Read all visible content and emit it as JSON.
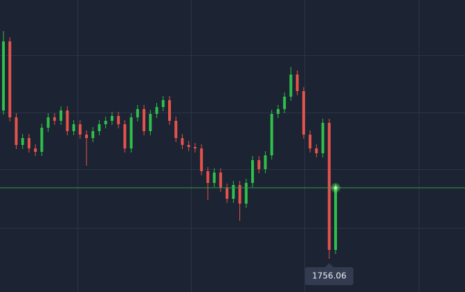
{
  "chart_data": {
    "type": "candlestick",
    "ylim": [
      1755.1,
      1763.56
    ],
    "up_color": "#2fbf4a",
    "down_color": "#e5534b",
    "open": [
      1760.36,
      1762.36,
      1760.16,
      1759.36,
      1759.56,
      1759.26,
      1759.16,
      1759.86,
      1760.16,
      1760.06,
      1760.36,
      1759.76,
      1759.96,
      1759.66,
      1759.56,
      1759.76,
      1759.96,
      1760.06,
      1760.2,
      1759.96,
      1759.26,
      1760.16,
      1760.4,
      1759.76,
      1760.26,
      1760.46,
      1760.66,
      1760.06,
      1759.56,
      1759.36,
      1759.3,
      1759.26,
      1758.6,
      1758.26,
      1758.56,
      1758.12,
      1757.8,
      1758.2,
      1757.66,
      1758.26,
      1758.92,
      1758.66,
      1759.06,
      1760.26,
      1760.4,
      1760.76,
      1761.4,
      1760.92,
      1759.66,
      1759.26,
      1759.12,
      1760.0,
      1756.32
    ],
    "high": [
      1762.66,
      1762.48,
      1760.28,
      1759.68,
      1759.68,
      1759.38,
      1759.98,
      1760.28,
      1760.28,
      1760.48,
      1760.48,
      1760.08,
      1760.08,
      1759.78,
      1759.88,
      1760.08,
      1760.18,
      1760.32,
      1760.32,
      1760.08,
      1760.28,
      1760.52,
      1760.52,
      1760.38,
      1760.58,
      1760.78,
      1760.78,
      1760.18,
      1759.68,
      1759.48,
      1759.42,
      1759.38,
      1758.72,
      1758.68,
      1758.68,
      1758.24,
      1758.32,
      1758.32,
      1758.38,
      1759.04,
      1759.04,
      1759.18,
      1760.38,
      1760.52,
      1760.88,
      1761.62,
      1761.52,
      1761.04,
      1759.78,
      1759.38,
      1760.12,
      1760.12,
      1758.24
    ],
    "low": [
      1760.24,
      1760.04,
      1759.24,
      1759.24,
      1759.14,
      1759.04,
      1759.04,
      1759.74,
      1759.94,
      1759.94,
      1759.64,
      1759.64,
      1759.54,
      1758.76,
      1759.44,
      1759.64,
      1759.84,
      1759.94,
      1759.84,
      1759.14,
      1759.14,
      1760.04,
      1759.64,
      1759.64,
      1760.14,
      1760.34,
      1759.94,
      1759.44,
      1759.24,
      1759.18,
      1759.14,
      1758.48,
      1757.76,
      1758.14,
      1758.0,
      1757.68,
      1757.68,
      1757.16,
      1757.54,
      1758.14,
      1758.54,
      1758.54,
      1758.94,
      1760.14,
      1760.28,
      1760.64,
      1760.8,
      1759.54,
      1759.14,
      1759.0,
      1759.0,
      1756.06,
      1756.2
    ],
    "close": [
      1762.36,
      1760.16,
      1759.36,
      1759.56,
      1759.26,
      1759.16,
      1759.86,
      1760.16,
      1760.06,
      1760.36,
      1759.76,
      1759.96,
      1759.66,
      1759.56,
      1759.76,
      1759.96,
      1760.06,
      1760.2,
      1759.96,
      1759.26,
      1760.16,
      1760.4,
      1759.76,
      1760.26,
      1760.46,
      1760.66,
      1760.06,
      1759.56,
      1759.36,
      1759.3,
      1759.26,
      1758.6,
      1758.26,
      1758.56,
      1758.12,
      1757.8,
      1758.2,
      1757.66,
      1758.26,
      1758.92,
      1758.66,
      1759.06,
      1760.26,
      1760.4,
      1760.76,
      1761.4,
      1760.92,
      1759.66,
      1759.26,
      1759.12,
      1760.0,
      1756.32,
      1758.12
    ]
  }
}
